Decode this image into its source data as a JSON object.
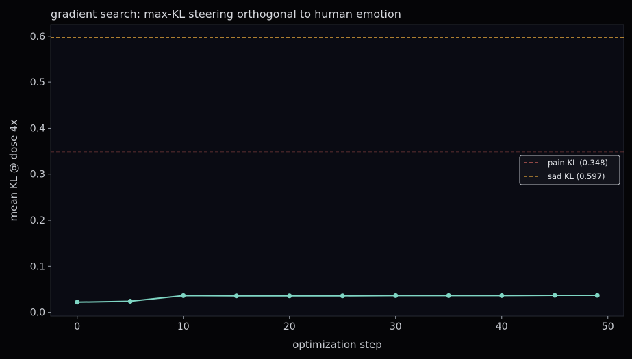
{
  "chart_data": {
    "type": "line",
    "title": "gradient search: max-KL steering orthogonal to human emotion",
    "xlabel": "optimization step",
    "ylabel": "mean KL @ dose 4x",
    "xlim": [
      -2.5,
      51.5
    ],
    "ylim": [
      -0.008,
      0.625
    ],
    "xticks": [
      0,
      10,
      20,
      30,
      40,
      50
    ],
    "yticks": [
      0.0,
      0.1,
      0.2,
      0.3,
      0.4,
      0.5,
      0.6
    ],
    "ytick_labels": [
      "0.0",
      "0.1",
      "0.2",
      "0.3",
      "0.4",
      "0.5",
      "0.6"
    ],
    "grid": false,
    "legend_position": "center-right",
    "series": [
      {
        "color": "#7fd6c4",
        "x": [
          0,
          5,
          10,
          15,
          20,
          25,
          30,
          35,
          40,
          45,
          49
        ],
        "y": [
          0.022,
          0.024,
          0.036,
          0.0355,
          0.0355,
          0.0355,
          0.036,
          0.036,
          0.036,
          0.0365,
          0.0365
        ]
      }
    ],
    "reference_lines": [
      {
        "name": "pain KL (0.348)",
        "y": 0.348,
        "color": "#e0685f"
      },
      {
        "name": "sad KL (0.597)",
        "y": 0.597,
        "color": "#e5a63a"
      }
    ]
  },
  "colors": {
    "background": "#050507",
    "plot_background": "#0a0b13",
    "axis": "#262a33",
    "text": "#c8cbd1"
  }
}
